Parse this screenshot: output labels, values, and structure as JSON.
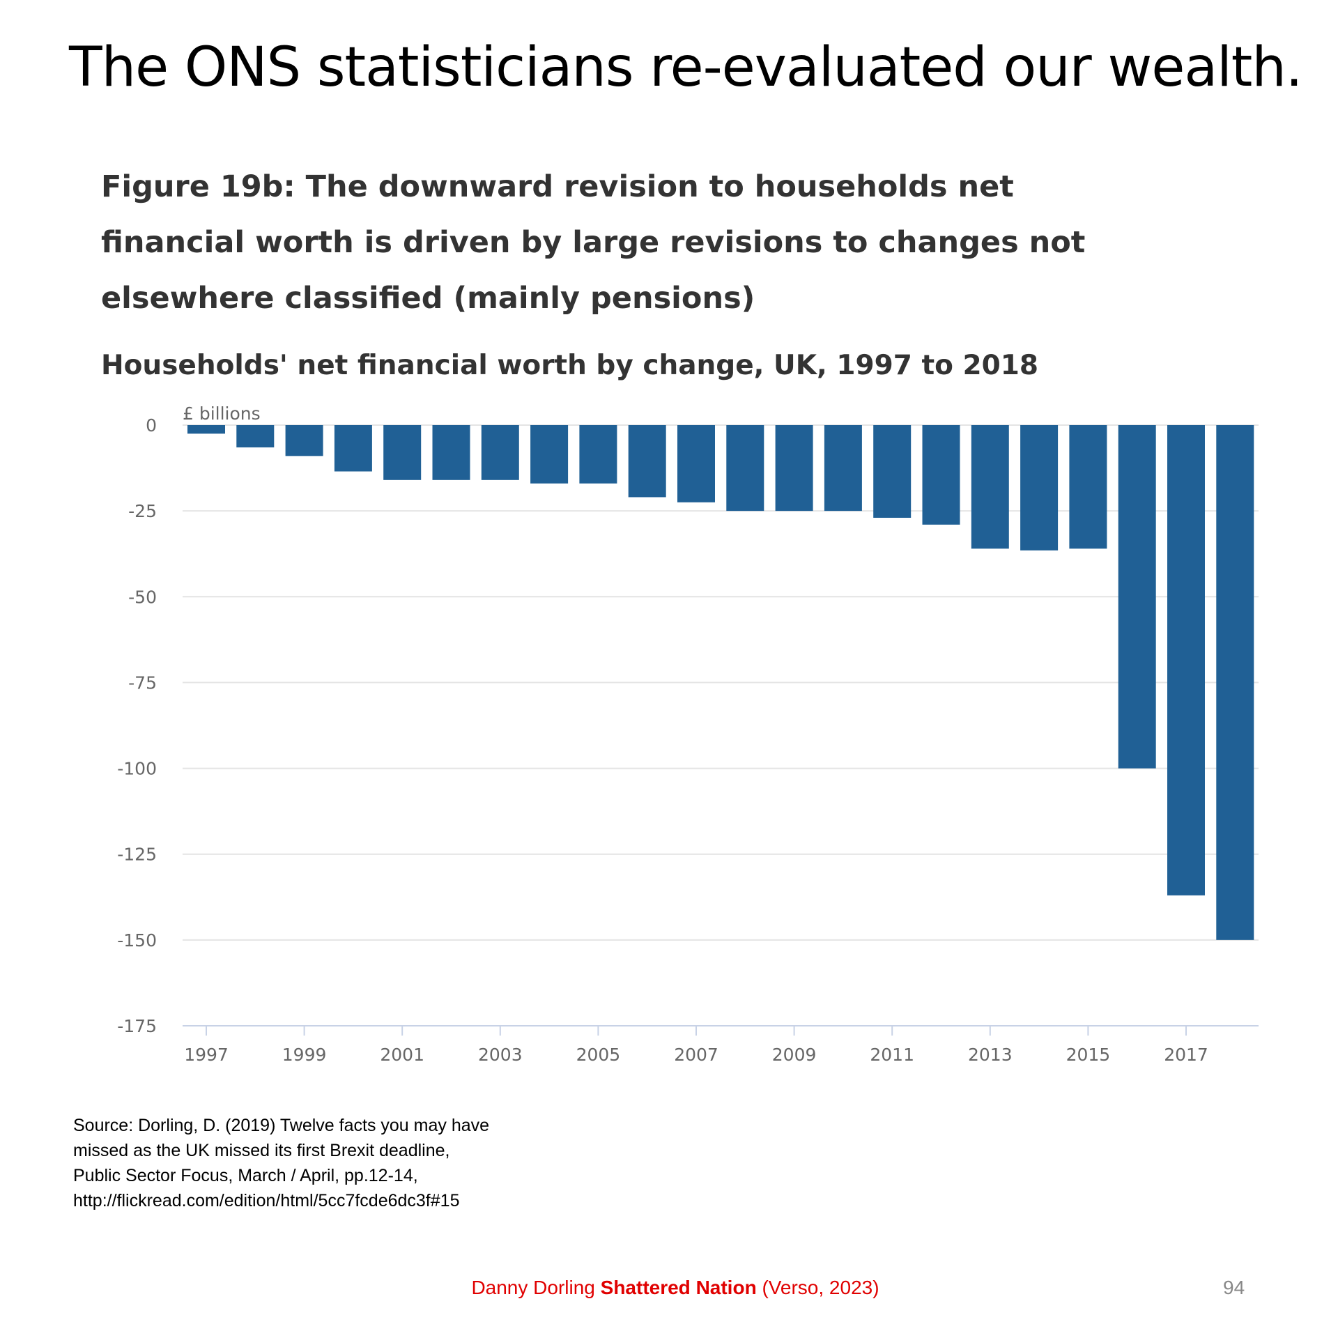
{
  "slide": {
    "title": "The ONS statisticians re-evaluated our wealth.",
    "source_lines": [
      "Source: Dorling, D. (2019) Twelve facts you may have",
      "missed as the UK missed its first Brexit deadline,",
      "Public Sector Focus, March / April, pp.12-14,",
      "http://flickread.com/edition/html/5cc7fcde6dc3f#15"
    ],
    "footer": {
      "author": "Danny Dorling",
      "book": "Shattered Nation",
      "publisher": "(Verso, 2023)"
    },
    "page_number": "94"
  },
  "chart_data": {
    "type": "bar",
    "title": "Figure 19b: The downward revision to households net financial worth is driven by large revisions to changes not elsewhere classified (mainly pensions)",
    "subtitle": "Households' net financial worth by change, UK, 1997 to 2018",
    "ylabel": "£ billions",
    "xlabel": "",
    "ylim": [
      -175,
      0
    ],
    "yticks": [
      0,
      -25,
      -50,
      -75,
      -100,
      -125,
      -150,
      -175
    ],
    "xtick_labels": [
      "1997",
      "1999",
      "2001",
      "2003",
      "2005",
      "2007",
      "2009",
      "2011",
      "2013",
      "2015",
      "2017"
    ],
    "categories": [
      "1997",
      "1998",
      "1999",
      "2000",
      "2001",
      "2002",
      "2003",
      "2004",
      "2005",
      "2006",
      "2007",
      "2008",
      "2009",
      "2010",
      "2011",
      "2012",
      "2013",
      "2014",
      "2015",
      "2016",
      "2017",
      "2018"
    ],
    "values": [
      -2.5,
      -6.5,
      -9,
      -13.5,
      -16,
      -16,
      -16,
      -17,
      -17,
      -21,
      -22.5,
      -25,
      -25,
      -25,
      -27,
      -29,
      -36,
      -36.5,
      -36,
      -100,
      -137,
      -150
    ],
    "grid": true,
    "bar_color": "#206095",
    "grid_color": "#e4e4e4",
    "axis_color": "#c8d2e6"
  }
}
